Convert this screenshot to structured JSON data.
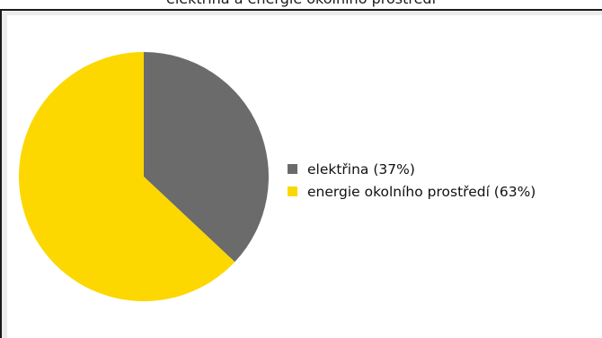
{
  "title": "elektrina a energie okolniho prostredi",
  "chart_data": {
    "type": "pie",
    "title": "",
    "slices": [
      {
        "label": "elektřina (37%)",
        "value": 37,
        "color": "#6b6b6b"
      },
      {
        "label": "energie okolního prostředí (63%)",
        "value": 63,
        "color": "#fcd700"
      }
    ],
    "start": "12 o'clock",
    "direction": "clockwise",
    "legend_position": "right"
  }
}
